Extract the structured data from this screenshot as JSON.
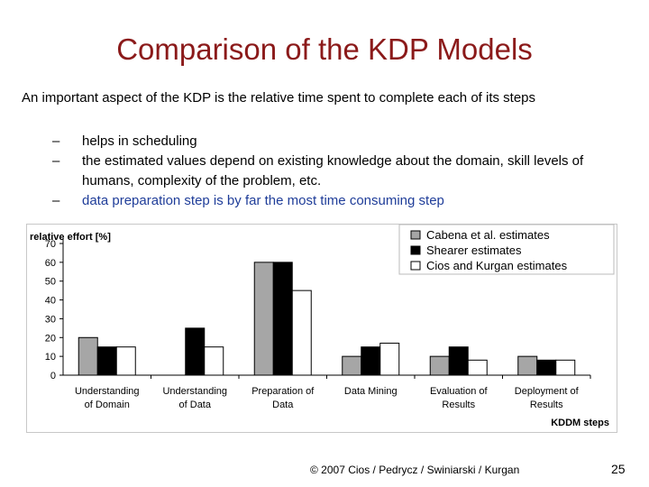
{
  "slide": {
    "title": "Comparison of the KDP Models",
    "subtitle": "An important aspect of the KDP is the relative time spent to complete each of its steps",
    "bullets": [
      {
        "dash": "–",
        "text": "helps in scheduling"
      },
      {
        "dash": "–",
        "text": "the estimated values depend on existing knowledge about the domain, skill levels of humans, complexity of the problem, etc."
      },
      {
        "dash": "–",
        "text": "data preparation step is by far the most time consuming step"
      }
    ],
    "footer": "© 2007 Cios / Pedrycz / Swiniarski / Kurgan",
    "page_number": "25"
  },
  "chart_data": {
    "type": "bar",
    "ylabel": "relative effort [%]",
    "xlabel": "KDDM steps",
    "ylim": [
      0,
      70
    ],
    "yticks": [
      0,
      10,
      20,
      30,
      40,
      50,
      60,
      70
    ],
    "grid": false,
    "legend_position": "top-right",
    "categories": [
      [
        "Understanding",
        "of Domain"
      ],
      [
        "Understanding",
        "of Data"
      ],
      [
        "Preparation of",
        "Data"
      ],
      [
        "Data Mining",
        ""
      ],
      [
        "Evaluation of",
        "Results"
      ],
      [
        "Deployment of",
        "Results"
      ]
    ],
    "series": [
      {
        "name": "Cabena et al. estimates",
        "color": "#a6a6a6",
        "values": [
          20,
          null,
          60,
          10,
          10,
          10
        ]
      },
      {
        "name": "Shearer estimates",
        "color": "#000000",
        "values": [
          15,
          25,
          60,
          15,
          15,
          8
        ]
      },
      {
        "name": "Cios and Kurgan estimates",
        "color": "#ffffff",
        "values": [
          15,
          15,
          45,
          17,
          8,
          8
        ]
      }
    ]
  }
}
